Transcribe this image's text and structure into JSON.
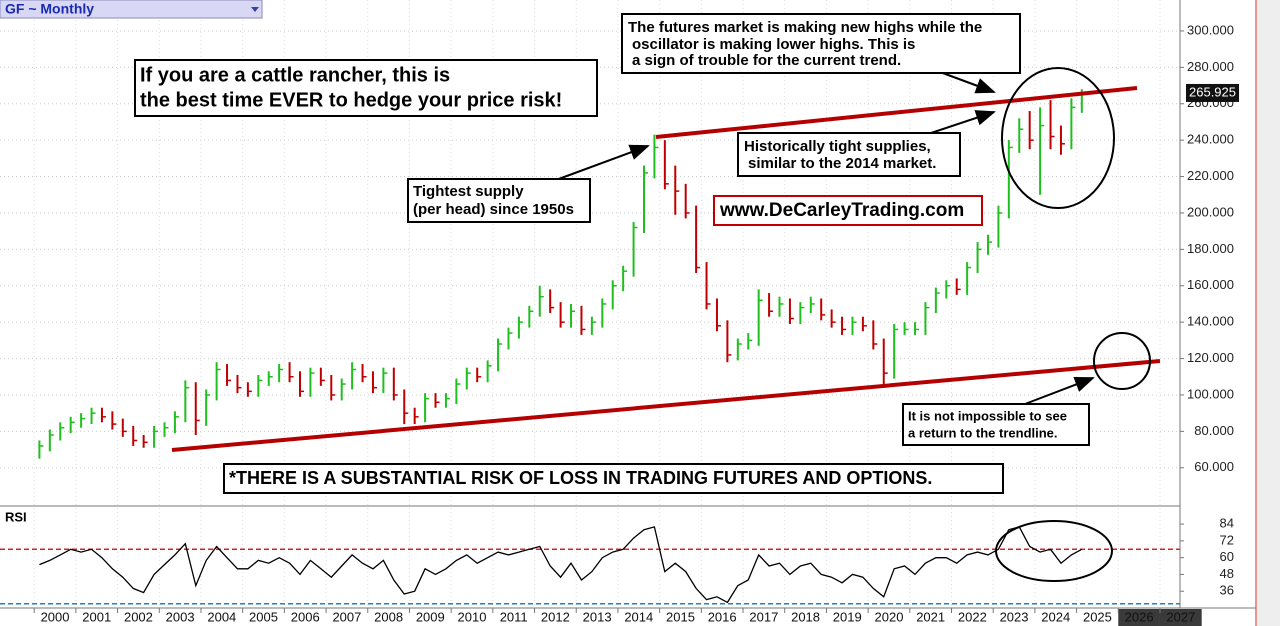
{
  "header": {
    "title": "GF ~ Monthly"
  },
  "chart_data": [
    {
      "type": "ohlc",
      "title": "GF ~ Monthly",
      "x": [
        2000.125,
        2000.375,
        2000.625,
        2000.875,
        2001.125,
        2001.375,
        2001.625,
        2001.875,
        2002.125,
        2002.375,
        2002.625,
        2002.875,
        2003.125,
        2003.375,
        2003.625,
        2003.875,
        2004.125,
        2004.375,
        2004.625,
        2004.875,
        2005.125,
        2005.375,
        2005.625,
        2005.875,
        2006.125,
        2006.375,
        2006.625,
        2006.875,
        2007.125,
        2007.375,
        2007.625,
        2007.875,
        2008.125,
        2008.375,
        2008.625,
        2008.875,
        2009.125,
        2009.375,
        2009.625,
        2009.875,
        2010.125,
        2010.375,
        2010.625,
        2010.875,
        2011.125,
        2011.375,
        2011.625,
        2011.875,
        2012.125,
        2012.375,
        2012.625,
        2012.875,
        2013.125,
        2013.375,
        2013.625,
        2013.875,
        2014.125,
        2014.375,
        2014.625,
        2014.875,
        2015.125,
        2015.375,
        2015.625,
        2015.875,
        2016.125,
        2016.375,
        2016.625,
        2016.875,
        2017.125,
        2017.375,
        2017.625,
        2017.875,
        2018.125,
        2018.375,
        2018.625,
        2018.875,
        2019.125,
        2019.375,
        2019.625,
        2019.875,
        2020.125,
        2020.375,
        2020.625,
        2020.875,
        2021.125,
        2021.375,
        2021.625,
        2021.875,
        2022.125,
        2022.375,
        2022.625,
        2022.875,
        2023.125,
        2023.375,
        2023.625,
        2023.875,
        2024.125,
        2024.375,
        2024.625,
        2024.875,
        2025.125
      ],
      "high": [
        75,
        81,
        85,
        88,
        90,
        93,
        93,
        91,
        87,
        83,
        78,
        83,
        85,
        91,
        108,
        107,
        103,
        118,
        117,
        111,
        107,
        111,
        113,
        117,
        118,
        113,
        115,
        115,
        111,
        109,
        118,
        117,
        113,
        115,
        115,
        103,
        93,
        101,
        101,
        101,
        109,
        115,
        115,
        119,
        131,
        137,
        143,
        149,
        160,
        158,
        151,
        150,
        149,
        143,
        153,
        163,
        171,
        195,
        226,
        243,
        240,
        226,
        216,
        204,
        173,
        153,
        141,
        131,
        134,
        158,
        156,
        154,
        153,
        151,
        154,
        153,
        147,
        143,
        143,
        143,
        141,
        131,
        139,
        140,
        140,
        151,
        159,
        163,
        164,
        173,
        184,
        188,
        204,
        240,
        252,
        256,
        258,
        262,
        248,
        263,
        268
      ],
      "low": [
        65,
        69,
        75,
        79,
        82,
        84,
        85,
        81,
        77,
        72,
        71,
        71,
        77,
        79,
        85,
        78,
        83,
        97,
        105,
        101,
        99,
        99,
        105,
        107,
        107,
        99,
        99,
        105,
        97,
        97,
        103,
        107,
        101,
        101,
        97,
        84,
        84,
        85,
        93,
        93,
        95,
        103,
        107,
        107,
        113,
        125,
        131,
        137,
        143,
        145,
        137,
        137,
        133,
        133,
        137,
        147,
        157,
        165,
        189,
        219,
        213,
        199,
        197,
        167,
        147,
        135,
        118,
        119,
        125,
        127,
        143,
        143,
        139,
        139,
        145,
        141,
        137,
        133,
        133,
        135,
        125,
        104,
        109,
        133,
        133,
        133,
        145,
        153,
        155,
        155,
        167,
        177,
        181,
        197,
        233,
        235,
        210,
        235,
        232,
        235,
        255
      ],
      "close": [
        72,
        78,
        82,
        85,
        87,
        90,
        88,
        84,
        80,
        75,
        74,
        80,
        82,
        88,
        104,
        86,
        100,
        114,
        108,
        104,
        102,
        108,
        110,
        114,
        110,
        102,
        112,
        108,
        100,
        106,
        114,
        110,
        104,
        112,
        100,
        90,
        88,
        98,
        96,
        98,
        106,
        112,
        110,
        116,
        128,
        134,
        140,
        146,
        154,
        148,
        140,
        146,
        136,
        140,
        150,
        160,
        168,
        192,
        222,
        236,
        216,
        212,
        200,
        170,
        150,
        138,
        122,
        128,
        130,
        152,
        146,
        150,
        142,
        148,
        150,
        144,
        140,
        136,
        140,
        138,
        128,
        112,
        136,
        136,
        136,
        148,
        156,
        160,
        158,
        170,
        180,
        184,
        200,
        236,
        246,
        240,
        248,
        242,
        238,
        258,
        265.925
      ],
      "up_color": "#1fbf1f",
      "down_color": "#c00000",
      "last_price": 265.925,
      "xlim": [
        1999.18,
        2027.48
      ],
      "xticks": [
        2000,
        2001,
        2002,
        2003,
        2004,
        2005,
        2006,
        2007,
        2008,
        2009,
        2010,
        2011,
        2012,
        2013,
        2014,
        2015,
        2016,
        2017,
        2018,
        2019,
        2020,
        2021,
        2022,
        2023,
        2024,
        2025,
        2026,
        2027
      ],
      "ylim": [
        39,
        317
      ],
      "yticks": [
        {
          "value": 60,
          "label": "60.000"
        },
        {
          "value": 80,
          "label": "80.000"
        },
        {
          "value": 100,
          "label": "100.000"
        },
        {
          "value": 120,
          "label": "120.000"
        },
        {
          "value": 140,
          "label": "140.000"
        },
        {
          "value": 160,
          "label": "160.000"
        },
        {
          "value": 180,
          "label": "180.000"
        },
        {
          "value": 200,
          "label": "200.000"
        },
        {
          "value": 220,
          "label": "220.000"
        },
        {
          "value": 240,
          "label": "240.000"
        },
        {
          "value": 260,
          "label": "260.000"
        },
        {
          "value": 280,
          "label": "280.000"
        },
        {
          "value": 300,
          "label": "300.000"
        }
      ],
      "grid": true
    },
    {
      "type": "line",
      "title": "RSI",
      "x": [
        2000.125,
        2000.375,
        2000.625,
        2000.875,
        2001.125,
        2001.375,
        2001.625,
        2001.875,
        2002.125,
        2002.375,
        2002.625,
        2002.875,
        2003.125,
        2003.375,
        2003.625,
        2003.875,
        2004.125,
        2004.375,
        2004.625,
        2004.875,
        2005.125,
        2005.375,
        2005.625,
        2005.875,
        2006.125,
        2006.375,
        2006.625,
        2006.875,
        2007.125,
        2007.375,
        2007.625,
        2007.875,
        2008.125,
        2008.375,
        2008.625,
        2008.875,
        2009.125,
        2009.375,
        2009.625,
        2009.875,
        2010.125,
        2010.375,
        2010.625,
        2010.875,
        2011.125,
        2011.375,
        2011.625,
        2011.875,
        2012.125,
        2012.375,
        2012.625,
        2012.875,
        2013.125,
        2013.375,
        2013.625,
        2013.875,
        2014.125,
        2014.375,
        2014.625,
        2014.875,
        2015.125,
        2015.375,
        2015.625,
        2015.875,
        2016.125,
        2016.375,
        2016.625,
        2016.875,
        2017.125,
        2017.375,
        2017.625,
        2017.875,
        2018.125,
        2018.375,
        2018.625,
        2018.875,
        2019.125,
        2019.375,
        2019.625,
        2019.875,
        2020.125,
        2020.375,
        2020.625,
        2020.875,
        2021.125,
        2021.375,
        2021.625,
        2021.875,
        2022.125,
        2022.375,
        2022.625,
        2022.875,
        2023.125,
        2023.375,
        2023.625,
        2023.875,
        2024.125,
        2024.375,
        2024.625,
        2024.875,
        2025.125
      ],
      "values": [
        55,
        58,
        62,
        66,
        64,
        66,
        60,
        52,
        46,
        38,
        35,
        48,
        55,
        62,
        70,
        40,
        58,
        68,
        60,
        52,
        52,
        58,
        56,
        60,
        56,
        48,
        58,
        52,
        46,
        54,
        62,
        56,
        52,
        58,
        44,
        34,
        36,
        52,
        48,
        52,
        58,
        62,
        56,
        60,
        64,
        62,
        64,
        66,
        68,
        54,
        46,
        56,
        44,
        50,
        60,
        64,
        66,
        74,
        80,
        82,
        50,
        56,
        50,
        38,
        30,
        32,
        28,
        40,
        44,
        62,
        54,
        56,
        48,
        54,
        56,
        48,
        46,
        42,
        48,
        46,
        38,
        32,
        52,
        54,
        48,
        56,
        60,
        60,
        56,
        62,
        64,
        62,
        66,
        80,
        82,
        68,
        64,
        66,
        56,
        62,
        66
      ],
      "color": "#000000",
      "upper_level": 66,
      "upper_color": "#e02020",
      "lower_level": 27,
      "lower_color": "#2080c0",
      "xlim": [
        1999.18,
        2027.48
      ],
      "ylim": [
        24,
        95.5
      ],
      "yticks": [
        36,
        48,
        60,
        72,
        84
      ]
    }
  ],
  "annotations": {
    "headline": [
      "If you are a cattle rancher, this is",
      "the best time EVER to hedge your price risk!"
    ],
    "futures_note": [
      "The futures market is making new highs while the",
      "oscillator is making lower highs. This is",
      "a sign of trouble for the current trend."
    ],
    "supply_note": [
      "Tightest supply",
      "(per head) since 1950s"
    ],
    "tight_note": [
      "Historically tight supplies,",
      "similar to the 2014 market."
    ],
    "website": "www.DeCarleyTrading.com",
    "disclaimer": "*THERE IS A SUBSTANTIAL RISK OF LOSS IN TRADING FUTURES AND OPTIONS.",
    "trendline_note": [
      "It is not impossible to see",
      "a return to the trendline."
    ]
  }
}
